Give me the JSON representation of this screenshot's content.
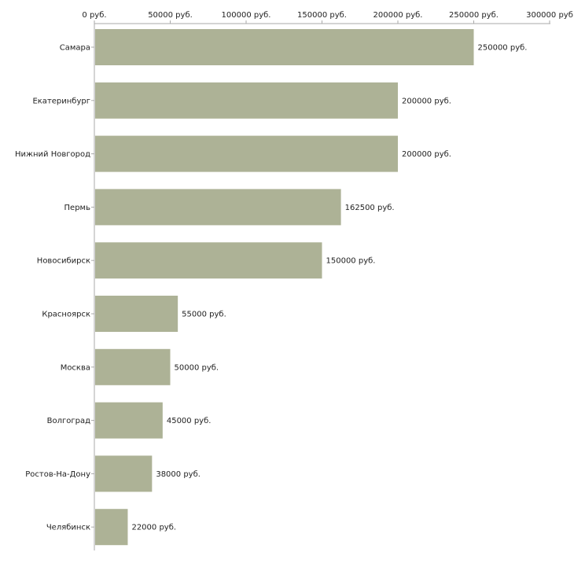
{
  "chart_data": {
    "type": "bar",
    "orientation": "horizontal",
    "categories": [
      "Самара",
      "Екатеринбург",
      "Нижний Новгород",
      "Пермь",
      "Новосибирск",
      "Красноярск",
      "Москва",
      "Волгоград",
      "Ростов-На-Дону",
      "Челябинск"
    ],
    "values": [
      250000,
      200000,
      200000,
      162500,
      150000,
      55000,
      50000,
      45000,
      38000,
      22000
    ],
    "value_labels": [
      "250000 руб.",
      "200000 руб.",
      "200000 руб.",
      "162500 руб.",
      "150000 руб.",
      "55000 руб.",
      "50000 руб.",
      "45000 руб.",
      "38000 руб.",
      "22000 руб."
    ],
    "x_ticks": [
      0,
      50000,
      100000,
      150000,
      200000,
      250000,
      300000
    ],
    "x_tick_labels": [
      "0 руб.",
      "50000 руб.",
      "100000 руб.",
      "150000 руб.",
      "200000 руб.",
      "250000 руб.",
      "300000 руб"
    ],
    "xlim": [
      0,
      300000
    ],
    "axis_position": "top",
    "title": "",
    "xlabel": "",
    "ylabel": "",
    "colors": {
      "bar": "#adb296",
      "axis": "#aaaaaa",
      "text": "#222222"
    }
  }
}
